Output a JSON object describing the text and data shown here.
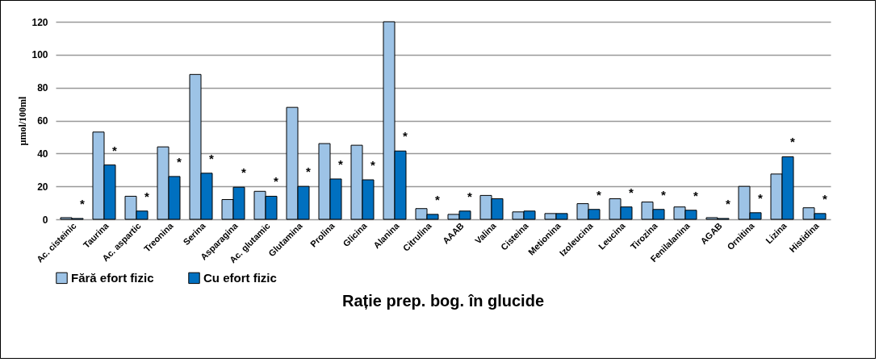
{
  "chart_data": {
    "type": "bar",
    "title": "Rație prep. bog. în glucide",
    "ylabel": "µmol/100ml",
    "categories": [
      "Ac. cisteinic",
      "Taurina",
      "Ac. aspartic",
      "Treonina",
      "Serina",
      "Asparagina",
      "Ac. glutamic",
      "Glutamina",
      "Prolina",
      "Glicina",
      "Alanina",
      "Citrulina",
      "AAAB",
      "Valina",
      "Cisteina",
      "Metionina",
      "Izoleucina",
      "Leucina",
      "Tirozina",
      "Fenilalanina",
      "AGAB",
      "Ornitina",
      "Lizina",
      "Histidina"
    ],
    "series": [
      {
        "name": "Fără efort fizic",
        "color": "#9dc3e6",
        "values": [
          1,
          53,
          14,
          44,
          88,
          12,
          17,
          68,
          46,
          45,
          120,
          6.5,
          3,
          14.5,
          4.5,
          3.5,
          9.5,
          12.5,
          10.5,
          7.5,
          1,
          20,
          27.5,
          7
        ]
      },
      {
        "name": "Cu efort fizic",
        "color": "#0070c0",
        "values": [
          0.5,
          33,
          5,
          26,
          28,
          19.5,
          14,
          20,
          24.5,
          24,
          41.5,
          3,
          5,
          12.5,
          5,
          3.5,
          6,
          7.5,
          6,
          5.5,
          0.5,
          4,
          38,
          3.5
        ]
      }
    ],
    "ylim": [
      0,
      120
    ],
    "yticks": [
      0,
      20,
      40,
      60,
      80,
      100,
      120
    ],
    "grid": "y",
    "legend": "bottom",
    "annotations": [
      {
        "text": "*",
        "x": "Ac. cisteinic",
        "y": 0.5
      },
      {
        "text": "*",
        "x": "Taurina",
        "y": 33
      },
      {
        "text": "*",
        "x": "Ac. aspartic",
        "y": 5
      },
      {
        "text": "*",
        "x": "Treonina",
        "y": 26
      },
      {
        "text": "*",
        "x": "Serina",
        "y": 28
      },
      {
        "text": "*",
        "x": "Asparagina",
        "y": 19.5
      },
      {
        "text": "*",
        "x": "Ac. glutamic",
        "y": 14
      },
      {
        "text": "*",
        "x": "Glutamina",
        "y": 20
      },
      {
        "text": "*",
        "x": "Prolina",
        "y": 24.5
      },
      {
        "text": "*",
        "x": "Glicina",
        "y": 24
      },
      {
        "text": "*",
        "x": "Alanina",
        "y": 41.5
      },
      {
        "text": "*",
        "x": "Citrulina",
        "y": 3
      },
      {
        "text": "*",
        "x": "AAAB",
        "y": 5
      },
      {
        "text": "*",
        "x": "Izoleucina",
        "y": 6
      },
      {
        "text": "*",
        "x": "Leucina",
        "y": 7.5
      },
      {
        "text": "*",
        "x": "Tirozina",
        "y": 6
      },
      {
        "text": "*",
        "x": "Fenilalanina",
        "y": 5.5
      },
      {
        "text": "*",
        "x": "AGAB",
        "y": 0.5
      },
      {
        "text": "*",
        "x": "Ornitina",
        "y": 4
      },
      {
        "text": "*",
        "x": "Lizina",
        "y": 38
      },
      {
        "text": "*",
        "x": "Histidina",
        "y": 3.5
      }
    ]
  }
}
